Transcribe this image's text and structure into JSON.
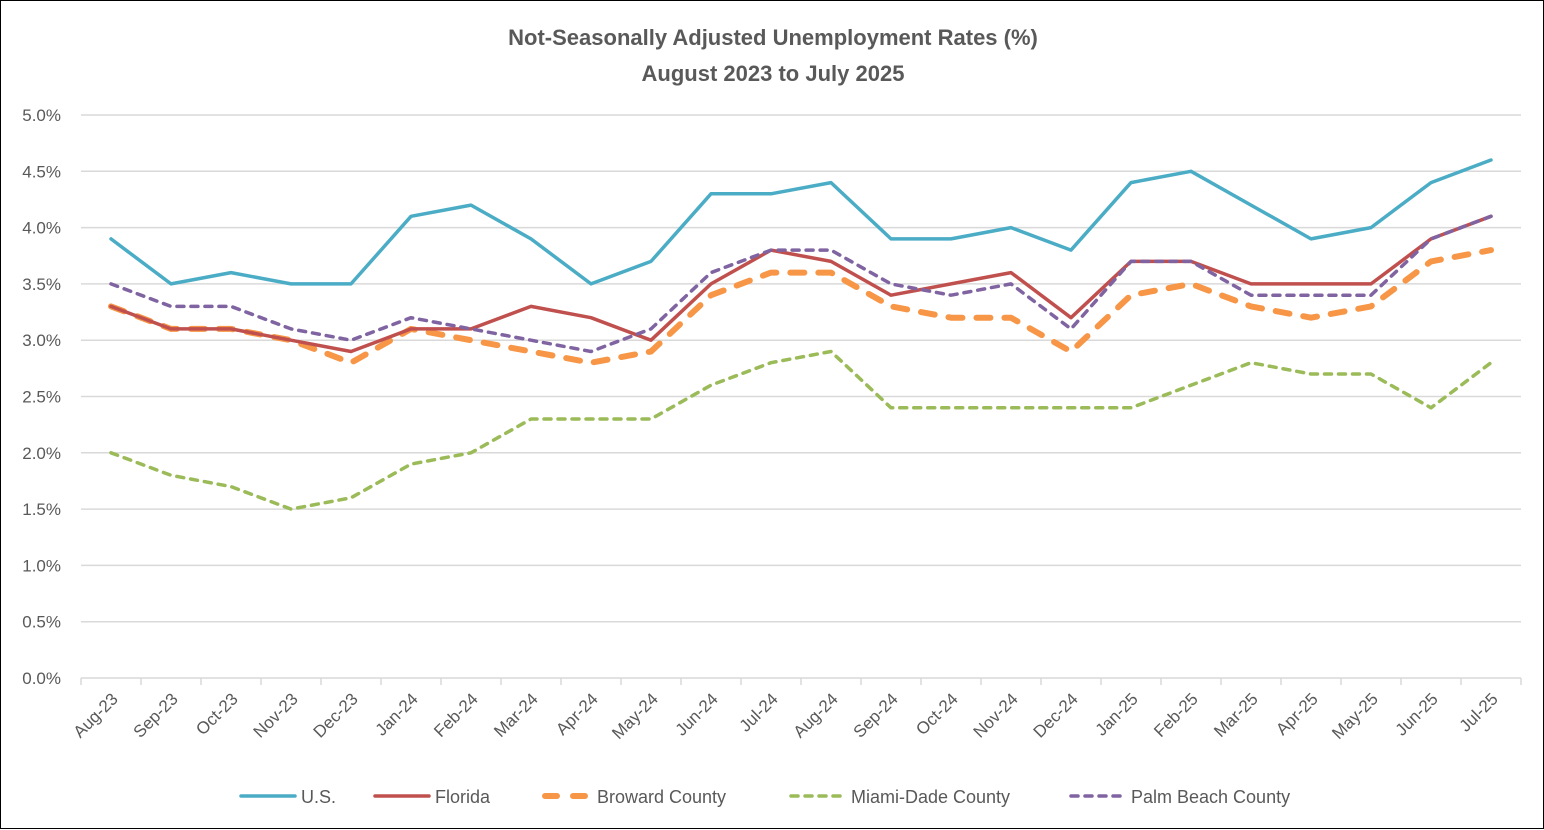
{
  "chart_data": {
    "type": "line",
    "title": "Not-Seasonally Adjusted Unemployment Rates (%)",
    "subtitle": "August 2023 to July 2025",
    "xlabel": "",
    "ylabel": "",
    "ylim": [
      0,
      5.0
    ],
    "yticks": [
      "0.0%",
      "0.5%",
      "1.0%",
      "1.5%",
      "2.0%",
      "2.5%",
      "3.0%",
      "3.5%",
      "4.0%",
      "4.5%",
      "5.0%"
    ],
    "ytick_values": [
      0,
      0.5,
      1.0,
      1.5,
      2.0,
      2.5,
      3.0,
      3.5,
      4.0,
      4.5,
      5.0
    ],
    "grid": true,
    "legend_position": "bottom",
    "categories": [
      "Aug-23",
      "Sep-23",
      "Oct-23",
      "Nov-23",
      "Dec-23",
      "Jan-24",
      "Feb-24",
      "Mar-24",
      "Apr-24",
      "May-24",
      "Jun-24",
      "Jul-24",
      "Aug-24",
      "Sep-24",
      "Oct-24",
      "Nov-24",
      "Dec-24",
      "Jan-25",
      "Feb-25",
      "Mar-25",
      "Apr-25",
      "May-25",
      "Jun-25",
      "Jul-25"
    ],
    "series": [
      {
        "name": "U.S.",
        "color": "#4bacc6",
        "style": "solid",
        "values": [
          3.9,
          3.5,
          3.6,
          3.5,
          3.5,
          4.1,
          4.2,
          3.9,
          3.5,
          3.7,
          4.3,
          4.3,
          4.4,
          3.9,
          3.9,
          4.0,
          3.8,
          4.4,
          4.5,
          4.2,
          3.9,
          4.0,
          4.4,
          4.6
        ]
      },
      {
        "name": "Florida",
        "color": "#c0504d",
        "style": "solid",
        "values": [
          3.3,
          3.1,
          3.1,
          3.0,
          2.9,
          3.1,
          3.1,
          3.3,
          3.2,
          3.0,
          3.5,
          3.8,
          3.7,
          3.4,
          3.5,
          3.6,
          3.2,
          3.7,
          3.7,
          3.5,
          3.5,
          3.5,
          3.9,
          4.1
        ]
      },
      {
        "name": "Broward County",
        "color": "#f79646",
        "style": "long-dash",
        "values": [
          3.3,
          3.1,
          3.1,
          3.0,
          2.8,
          3.1,
          3.0,
          2.9,
          2.8,
          2.9,
          3.4,
          3.6,
          3.6,
          3.3,
          3.2,
          3.2,
          2.9,
          3.4,
          3.5,
          3.3,
          3.2,
          3.3,
          3.7,
          3.8
        ]
      },
      {
        "name": "Miami-Dade County",
        "color": "#9bbb59",
        "style": "dash",
        "values": [
          2.0,
          1.8,
          1.7,
          1.5,
          1.6,
          1.9,
          2.0,
          2.3,
          2.3,
          2.3,
          2.6,
          2.8,
          2.9,
          2.4,
          2.4,
          2.4,
          2.4,
          2.4,
          2.6,
          2.8,
          2.7,
          2.7,
          2.4,
          2.8
        ]
      },
      {
        "name": "Palm Beach County",
        "color": "#8064a2",
        "style": "dash",
        "values": [
          3.5,
          3.3,
          3.3,
          3.1,
          3.0,
          3.2,
          3.1,
          3.0,
          2.9,
          3.1,
          3.6,
          3.8,
          3.8,
          3.5,
          3.4,
          3.5,
          3.1,
          3.7,
          3.7,
          3.4,
          3.4,
          3.4,
          3.9,
          4.1
        ]
      }
    ]
  }
}
